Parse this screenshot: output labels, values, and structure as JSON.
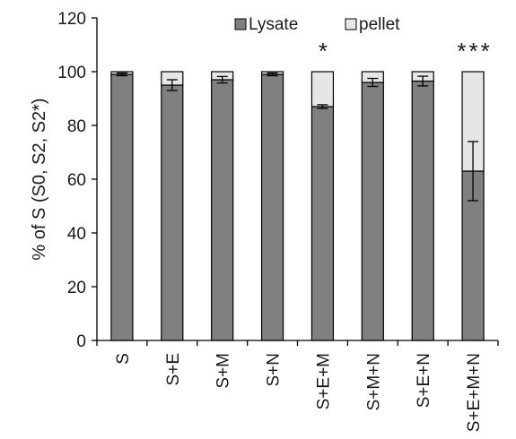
{
  "chart_data": {
    "type": "bar",
    "stacked": true,
    "title": "",
    "xlabel": "",
    "ylabel": "% of S (S0, S2, S2*)",
    "ylim": [
      0,
      120
    ],
    "yticks": [
      0,
      20,
      40,
      60,
      80,
      100,
      120
    ],
    "grid": false,
    "legend_position": "top-right",
    "categories": [
      "S",
      "S+E",
      "S+M",
      "S+N",
      "S+E+M",
      "S+M+N",
      "S+E+N",
      "S+E+M+N"
    ],
    "series": [
      {
        "name": "Lysate",
        "color": "#808080",
        "values": [
          99,
          95,
          97,
          99,
          87,
          96,
          96.5,
          63
        ],
        "error": [
          0.5,
          2.0,
          1.2,
          0.5,
          0.7,
          1.5,
          1.8,
          11
        ]
      },
      {
        "name": "pellet",
        "color": "#e6e6e6",
        "values": [
          1,
          5,
          3,
          1,
          13,
          4,
          3.5,
          37
        ]
      }
    ],
    "significance": [
      {
        "category": "S+E+M",
        "label": "*"
      },
      {
        "category": "S+E+M+N",
        "label": "***"
      }
    ]
  }
}
